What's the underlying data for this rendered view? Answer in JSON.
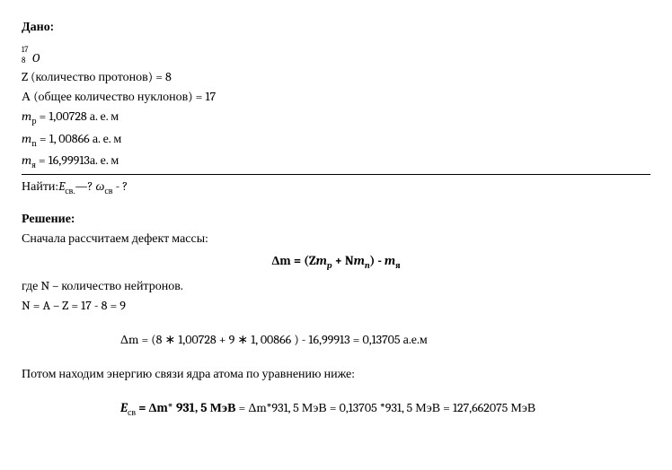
{
  "given_header": "Дано:",
  "isotope": {
    "mass_number": "17",
    "atomic_number": "8",
    "element": "O"
  },
  "given": {
    "z_line": "Z (количество протонов) = 8",
    "a_line": "А (общее количество нуклонов) = 17",
    "mp_prefix": "m",
    "mp_sub": "p",
    "mp_rest": " = 1,00728 а. е. м",
    "mn_prefix": "m",
    "mn_sub": "n",
    "mn_rest": " = 1, 00866 а. е. м",
    "my_prefix": "m",
    "my_sub": "я",
    "my_rest": " = 16,99913а. е. м"
  },
  "find": {
    "prefix": "Найти:",
    "e_sym": "E",
    "e_sub": "св.",
    "q1": "—?  ",
    "w_sym": "ω",
    "w_sub": "св",
    "q2": " - ?"
  },
  "solution_header": "Решение:",
  "step1_text": "Сначала рассчитаем дефект массы:",
  "formula1": {
    "dm": "Δm = (Z",
    "m1": "m",
    "m1_sub": "p",
    "plus": " +  N",
    "m2": "m",
    "m2_sub": "n",
    "close": ") - ",
    "m3": "m",
    "m3_sub": "я"
  },
  "n_note": "где N – количество нейтронов.",
  "n_calc": "N = A – Z = 17 - 8 = 9",
  "formula2": "Δm = (8 ∗ 1,00728 + 9 ∗ 1, 00866 ) - 16,99913 = 0,13705 а.е.м",
  "step2_text": "Потом находим энергию связи ядра атома по уравнению ниже:",
  "formula3": {
    "e_sym": "E",
    "e_sub": "св",
    "eq": " = Δm",
    "bold_const": "* 931, 5 МэВ",
    "rest": " = Δm*931, 5 МэВ = 0,13705  *931, 5 МэВ = 127,662075 МэВ"
  }
}
